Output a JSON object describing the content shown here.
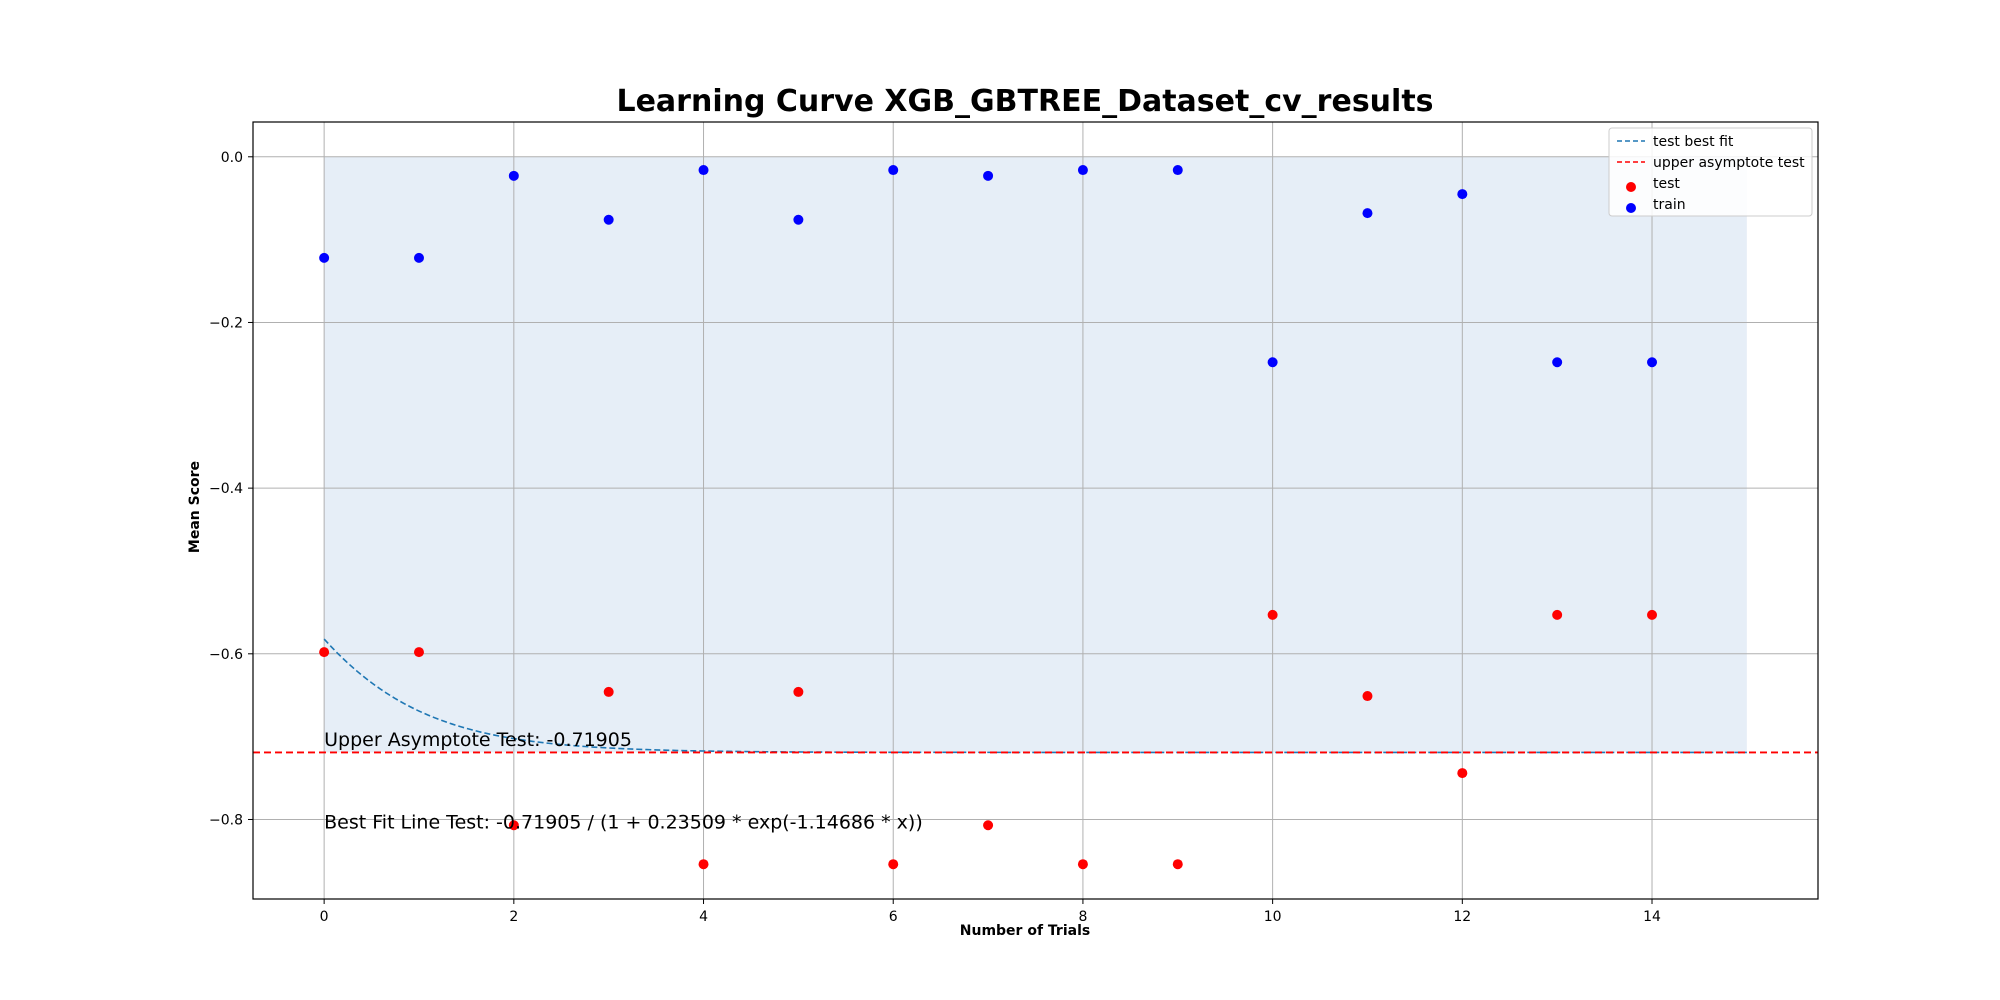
{
  "chart_data": {
    "type": "scatter",
    "title": "Learning Curve XGB_GBTREE_Dataset_cv_results",
    "xlabel": "Number of Trials",
    "ylabel": "Mean Score",
    "xlim": [
      -0.75,
      15.75
    ],
    "ylim": [
      -0.896,
      0.042
    ],
    "xticks": [
      0,
      2,
      4,
      6,
      8,
      10,
      12,
      14
    ],
    "xtick_labels": [
      "0",
      "2",
      "4",
      "6",
      "8",
      "10",
      "12",
      "14"
    ],
    "yticks": [
      0.0,
      -0.2,
      -0.4,
      -0.6,
      -0.8
    ],
    "ytick_labels": [
      "0.0",
      "−0.2",
      "−0.4",
      "−0.6",
      "−0.8"
    ],
    "grid": true,
    "legend_position": "top-right",
    "legend": [
      {
        "label": "test best fit",
        "kind": "dashed-line",
        "color": "#1f77b4"
      },
      {
        "label": "upper asymptote test",
        "kind": "dashed-line",
        "color": "#ff0000"
      },
      {
        "label": "test",
        "kind": "marker",
        "color": "#ff0000"
      },
      {
        "label": "train",
        "kind": "marker",
        "color": "#0000ff"
      }
    ],
    "series": [
      {
        "name": "train",
        "color": "#0000ff",
        "x": [
          0,
          1,
          2,
          3,
          4,
          5,
          6,
          7,
          8,
          9,
          10,
          11,
          12,
          13,
          14
        ],
        "y": [
          -0.122,
          -0.122,
          -0.023,
          -0.076,
          -0.016,
          -0.076,
          -0.016,
          -0.023,
          -0.016,
          -0.016,
          -0.248,
          -0.068,
          -0.045,
          -0.248,
          -0.248
        ]
      },
      {
        "name": "test",
        "color": "#ff0000",
        "x": [
          0,
          1,
          2,
          3,
          4,
          5,
          6,
          7,
          8,
          9,
          10,
          11,
          12,
          13,
          14
        ],
        "y": [
          -0.598,
          -0.598,
          -0.807,
          -0.646,
          -0.854,
          -0.646,
          -0.854,
          -0.807,
          -0.854,
          -0.854,
          -0.553,
          -0.651,
          -0.744,
          -0.553,
          -0.553
        ]
      }
    ],
    "fit": {
      "name": "test best fit",
      "color": "#1f77b4",
      "asymptote": -0.71905,
      "a": 0.23509,
      "b": -1.14686,
      "x_range": [
        0,
        15
      ]
    },
    "asymptote_line": {
      "name": "upper asymptote test",
      "color": "#ff0000",
      "y": -0.71905
    },
    "shaded_region": {
      "color": "#e6eef7",
      "x_range": [
        0,
        15
      ],
      "y_top": 0.0,
      "y_bottom": -0.71905
    },
    "annotations": [
      {
        "text": "Upper Asymptote Test: -0.71905",
        "x": 0,
        "y": -0.711
      },
      {
        "text": "Best Fit Line Test: -0.71905 / (1 + 0.23509 * exp(-1.14686 * x))",
        "x": 0,
        "y": -0.811
      }
    ]
  }
}
